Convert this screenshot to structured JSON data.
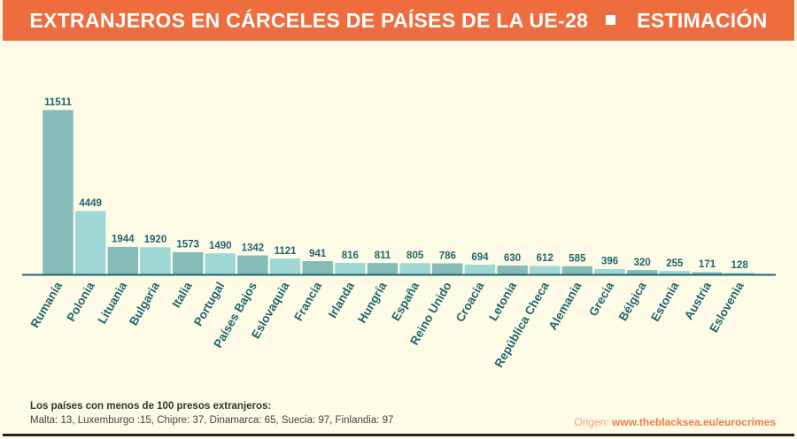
{
  "header": {
    "title": "EXTRANJEROS EN CÁRCELES DE PAÍSES DE LA UE-28",
    "subtitle": "ESTIMACIÓN"
  },
  "colors": {
    "header_bg": "#ee6d3f",
    "panel_bg": "#fdfbe6",
    "bar_dark": "#85bcb7",
    "bar_light": "#9fd7d4",
    "value_text": "#1f6670",
    "label_text": "#1f6670",
    "axis": "#1f6670"
  },
  "chart_data": {
    "type": "bar",
    "title": "EXTRANJEROS EN CÁRCELES DE PAÍSES DE LA UE-28",
    "subtitle": "ESTIMACIÓN",
    "xlabel": "",
    "ylabel": "",
    "ylim": [
      0,
      11511
    ],
    "grid": false,
    "categories": [
      "Rumanía",
      "Polonia",
      "Lituania",
      "Bulgaria",
      "Italia",
      "Portugal",
      "Países Bajos",
      "Eslovaquia",
      "Francia",
      "Irlanda",
      "Hungría",
      "España",
      "Reino Unido",
      "Croacia",
      "Letonia",
      "República Checa",
      "Alemania",
      "Grecia",
      "Bélgica",
      "Estonia",
      "Austria",
      "Eslovenia"
    ],
    "values": [
      11511,
      4449,
      1944,
      1920,
      1573,
      1490,
      1342,
      1121,
      941,
      816,
      811,
      805,
      786,
      694,
      630,
      612,
      585,
      396,
      320,
      255,
      171,
      128
    ]
  },
  "note": {
    "title": "Los países con menos de 100 presos extranjeros:",
    "text": "Malta: 13, Luxemburgo :15, Chipre: 37, Dinamarca: 65, Suecia: 97, Finlandia: 97"
  },
  "source": {
    "label": "Origen: ",
    "url": "www.theblacksea.eu/eurocrimes"
  }
}
